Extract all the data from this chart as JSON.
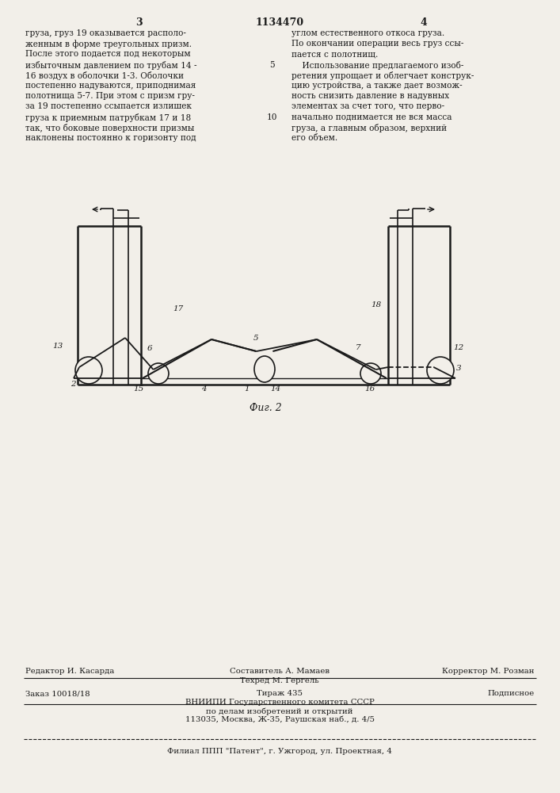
{
  "bg_color": "#f2efe9",
  "text_color": "#1a1a1a",
  "page_number_left": "3",
  "page_number_center": "1134470",
  "page_number_right": "4",
  "col_left_text": [
    "груза, груз 19 оказывается располо-",
    "женным в форме треугольных призм.",
    "После этого подается под некоторым",
    "избыточным давлением по трубам 14 -",
    "16 воздух в оболочки 1-3. Оболочки",
    "постепенно надуваются, приподнимая",
    "полотнища 5-7. При этом с призм гру-",
    "за 19 постепенно ссыпается излишек",
    "груза к приемным патрубкам 17 и 18",
    "так, что боковые поверхности призмы",
    "наклонены постоянно к горизонту под"
  ],
  "col_right_text": [
    "углом естественного откоса груза.",
    "По окончании операции весь груз ссы-",
    "пается с полотнищ.",
    "    Использование предлагаемого изоб-",
    "ретения упрощает и облегчает конструк-",
    "цию устройства, а также дает возмож-",
    "ность снизить давление в надувных",
    "элементах за счет того, что перво-",
    "начально поднимается не вся масса",
    "груза, а главным образом, верхний",
    "его объем."
  ],
  "fig_label": "Фиг. 2",
  "footer_line1_left": "Редактор И. Касарда",
  "footer_line1_center": "Составитель А. Мамаев",
  "footer_line1_right": "Корректор М. Розман",
  "footer_line2_center": "Техред М. Гергель",
  "footer_order": "Заказ 10018/18",
  "footer_tirazh": "Тираж 435",
  "footer_podpisnoe": "Подписное",
  "footer_vniiipi": "ВНИИПИ Государственного комитета СССР",
  "footer_po_delam": "по делам изобретений и открытий",
  "footer_address": "113035, Москва, Ж-35, Раушская наб., д. 4/5",
  "footer_filial": "Филиал ППП \"Патент\", г. Ужгород, ул. Проектная, 4"
}
